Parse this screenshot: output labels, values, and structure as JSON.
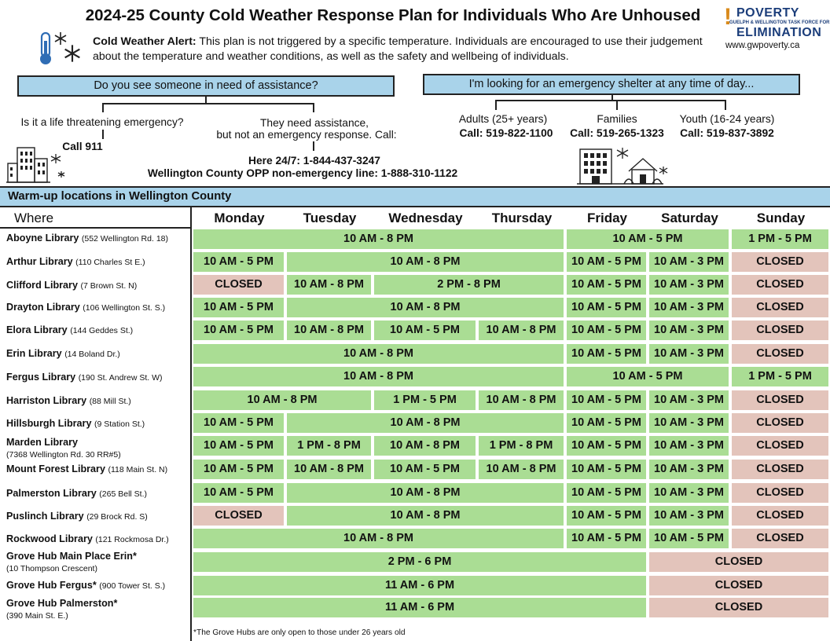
{
  "title": "2024-25 County Cold Weather Response Plan for Individuals Who Are Unhoused",
  "logo": {
    "top": "POVERTY",
    "subtitle": "GUELPH & WELLINGTON TASK FORCE FOR",
    "bottom": "ELIMINATION",
    "website": "www.gwpoverty.ca"
  },
  "alert": {
    "label": "Cold Weather Alert:",
    "text": " This plan is not triggered by a specific temperature. Individuals are encouraged to use their judgement about the temperature and weather conditions, as well as the safety and wellbeing of individuals."
  },
  "assist": {
    "header": "Do you see someone in need of assistance?",
    "left_q": "Is it a life threatening emergency?",
    "left_call": "Call 911",
    "right_q1": "They need assistance,",
    "right_q2": "but not an emergency response. Call:",
    "here247": "Here 24/7: 1-844-437-3247",
    "opp": "Wellington County OPP non-emergency line: 1-888-310-1122"
  },
  "shelter": {
    "header": "I'm looking for an emergency shelter at any time of day...",
    "groups": [
      {
        "label": "Adults (25+ years)",
        "call": "Call: 519-822-1100"
      },
      {
        "label": "Families",
        "call": "Call: 519-265-1323"
      },
      {
        "label": "Youth (16-24 years)",
        "call": "Call: 519-837-3892"
      }
    ]
  },
  "warmup": {
    "header": "Warm-up locations in Wellington County",
    "where": "Where",
    "days": [
      "Monday",
      "Tuesday",
      "Wednesday",
      "Thursday",
      "Friday",
      "Saturday",
      "Sunday"
    ],
    "rows": [
      {
        "name": "Aboyne Library",
        "addr": "(552 Wellington Rd. 18)",
        "cells": [
          {
            "text": "10 AM - 8 PM",
            "span": 4,
            "color": "g"
          },
          {
            "text": "10 AM - 5 PM",
            "span": 2,
            "color": "g"
          },
          {
            "text": "1 PM - 5 PM",
            "span": 1,
            "color": "g"
          }
        ]
      },
      {
        "name": "Arthur Library",
        "addr": "(110 Charles St E.)",
        "cells": [
          {
            "text": "10 AM - 5 PM",
            "span": 1,
            "color": "g"
          },
          {
            "text": "10 AM - 8 PM",
            "span": 3,
            "color": "g"
          },
          {
            "text": "10 AM - 5 PM",
            "span": 1,
            "color": "g"
          },
          {
            "text": "10 AM - 3 PM",
            "span": 1,
            "color": "g"
          },
          {
            "text": "CLOSED",
            "span": 1,
            "color": "r"
          }
        ]
      },
      {
        "name": "Clifford Library",
        "addr": "(7 Brown St. N)",
        "cells": [
          {
            "text": "CLOSED",
            "span": 1,
            "color": "r"
          },
          {
            "text": "10 AM - 8 PM",
            "span": 1,
            "color": "g"
          },
          {
            "text": "2 PM - 8 PM",
            "span": 2,
            "color": "g"
          },
          {
            "text": "10 AM - 5 PM",
            "span": 1,
            "color": "g"
          },
          {
            "text": "10 AM - 3 PM",
            "span": 1,
            "color": "g"
          },
          {
            "text": "CLOSED",
            "span": 1,
            "color": "r"
          }
        ]
      },
      {
        "name": "Drayton Library",
        "addr": "(106 Wellington St. S.)",
        "cells": [
          {
            "text": "10 AM - 5 PM",
            "span": 1,
            "color": "g"
          },
          {
            "text": "10 AM - 8 PM",
            "span": 3,
            "color": "g"
          },
          {
            "text": "10 AM - 5 PM",
            "span": 1,
            "color": "g"
          },
          {
            "text": "10 AM - 3 PM",
            "span": 1,
            "color": "g"
          },
          {
            "text": "CLOSED",
            "span": 1,
            "color": "r"
          }
        ]
      },
      {
        "name": "Elora Library",
        "addr": "(144 Geddes St.)",
        "cells": [
          {
            "text": "10 AM - 5 PM",
            "span": 1,
            "color": "g"
          },
          {
            "text": "10 AM - 8 PM",
            "span": 1,
            "color": "g"
          },
          {
            "text": "10 AM - 5 PM",
            "span": 1,
            "color": "g"
          },
          {
            "text": "10 AM - 8 PM",
            "span": 1,
            "color": "g"
          },
          {
            "text": "10 AM - 5 PM",
            "span": 1,
            "color": "g"
          },
          {
            "text": "10 AM - 3 PM",
            "span": 1,
            "color": "g"
          },
          {
            "text": "CLOSED",
            "span": 1,
            "color": "r"
          }
        ]
      },
      {
        "name": "Erin Library",
        "addr": "(14 Boland Dr.)",
        "cells": [
          {
            "text": "10 AM - 8 PM",
            "span": 4,
            "color": "g"
          },
          {
            "text": "10 AM - 5 PM",
            "span": 1,
            "color": "g"
          },
          {
            "text": "10 AM - 3 PM",
            "span": 1,
            "color": "g"
          },
          {
            "text": "CLOSED",
            "span": 1,
            "color": "r"
          }
        ]
      },
      {
        "name": "Fergus Library",
        "addr": "(190 St. Andrew St. W)",
        "cells": [
          {
            "text": "10 AM - 8 PM",
            "span": 4,
            "color": "g"
          },
          {
            "text": "10 AM - 5 PM",
            "span": 2,
            "color": "g"
          },
          {
            "text": "1 PM - 5 PM",
            "span": 1,
            "color": "g"
          }
        ]
      },
      {
        "name": "Harriston Library",
        "addr": "(88 Mill St.)",
        "cells": [
          {
            "text": "10 AM - 8 PM",
            "span": 2,
            "color": "g"
          },
          {
            "text": "1 PM - 5 PM",
            "span": 1,
            "color": "g"
          },
          {
            "text": "10 AM - 8 PM",
            "span": 1,
            "color": "g"
          },
          {
            "text": "10 AM - 5 PM",
            "span": 1,
            "color": "g"
          },
          {
            "text": "10 AM - 3 PM",
            "span": 1,
            "color": "g"
          },
          {
            "text": "CLOSED",
            "span": 1,
            "color": "r"
          }
        ]
      },
      {
        "name": "Hillsburgh Library",
        "addr": "(9 Station St.)",
        "cells": [
          {
            "text": "10 AM - 5 PM",
            "span": 1,
            "color": "g"
          },
          {
            "text": "10 AM - 8 PM",
            "span": 3,
            "color": "g"
          },
          {
            "text": "10 AM - 5 PM",
            "span": 1,
            "color": "g"
          },
          {
            "text": "10 AM - 3 PM",
            "span": 1,
            "color": "g"
          },
          {
            "text": "CLOSED",
            "span": 1,
            "color": "r"
          }
        ]
      },
      {
        "name": "Marden Library",
        "addr": "(7368 Wellington Rd. 30 RR#5)",
        "cells": [
          {
            "text": "10 AM - 5 PM",
            "span": 1,
            "color": "g"
          },
          {
            "text": "1 PM - 8 PM",
            "span": 1,
            "color": "g"
          },
          {
            "text": "10 AM - 8 PM",
            "span": 1,
            "color": "g"
          },
          {
            "text": "1 PM - 8 PM",
            "span": 1,
            "color": "g"
          },
          {
            "text": "10 AM - 5 PM",
            "span": 1,
            "color": "g"
          },
          {
            "text": "10 AM - 3 PM",
            "span": 1,
            "color": "g"
          },
          {
            "text": "CLOSED",
            "span": 1,
            "color": "r"
          }
        ]
      },
      {
        "name": "Mount Forest Library",
        "addr": "(118 Main St. N)",
        "cells": [
          {
            "text": "10 AM - 5 PM",
            "span": 1,
            "color": "g"
          },
          {
            "text": "10 AM - 8 PM",
            "span": 1,
            "color": "g"
          },
          {
            "text": "10 AM - 5 PM",
            "span": 1,
            "color": "g"
          },
          {
            "text": "10 AM - 8 PM",
            "span": 1,
            "color": "g"
          },
          {
            "text": "10 AM - 5 PM",
            "span": 1,
            "color": "g"
          },
          {
            "text": "10 AM - 3 PM",
            "span": 1,
            "color": "g"
          },
          {
            "text": "CLOSED",
            "span": 1,
            "color": "r"
          }
        ]
      },
      {
        "name": "Palmerston Library",
        "addr": "(265 Bell St.)",
        "cells": [
          {
            "text": "10 AM - 5 PM",
            "span": 1,
            "color": "g"
          },
          {
            "text": "10 AM - 8 PM",
            "span": 3,
            "color": "g"
          },
          {
            "text": "10 AM - 5 PM",
            "span": 1,
            "color": "g"
          },
          {
            "text": "10 AM - 3 PM",
            "span": 1,
            "color": "g"
          },
          {
            "text": "CLOSED",
            "span": 1,
            "color": "r"
          }
        ]
      },
      {
        "name": "Puslinch Library",
        "addr": "(29 Brock Rd. S)",
        "cells": [
          {
            "text": "CLOSED",
            "span": 1,
            "color": "r"
          },
          {
            "text": "10 AM - 8 PM",
            "span": 3,
            "color": "g"
          },
          {
            "text": "10 AM - 5 PM",
            "span": 1,
            "color": "g"
          },
          {
            "text": "10 AM - 3 PM",
            "span": 1,
            "color": "g"
          },
          {
            "text": "CLOSED",
            "span": 1,
            "color": "r"
          }
        ]
      },
      {
        "name": "Rockwood Library",
        "addr": "(121 Rockmosa Dr.)",
        "cells": [
          {
            "text": "10 AM - 8 PM",
            "span": 4,
            "color": "g"
          },
          {
            "text": "10 AM - 5 PM",
            "span": 1,
            "color": "g"
          },
          {
            "text": "10 AM - 5 PM",
            "span": 1,
            "color": "g"
          },
          {
            "text": "CLOSED",
            "span": 1,
            "color": "r"
          }
        ]
      },
      {
        "name": "Grove Hub Main Place Erin*",
        "addr": "(10 Thompson Crescent)",
        "cells": [
          {
            "text": "2 PM - 6 PM",
            "span": 5,
            "color": "g"
          },
          {
            "text": "CLOSED",
            "span": 2,
            "color": "r"
          }
        ]
      },
      {
        "name": "Grove Hub Fergus*",
        "addr": "(900 Tower St. S.)",
        "cells": [
          {
            "text": "11  AM - 6 PM",
            "span": 5,
            "color": "g"
          },
          {
            "text": "CLOSED",
            "span": 2,
            "color": "r"
          }
        ]
      },
      {
        "name": "Grove Hub Palmerston*",
        "addr": "(390 Main St. E.)",
        "cells": [
          {
            "text": "11 AM - 6 PM",
            "span": 5,
            "color": "g"
          },
          {
            "text": "CLOSED",
            "span": 2,
            "color": "r"
          }
        ]
      }
    ],
    "footnote": "*The Grove Hubs are only open to those under 26 years old"
  },
  "colors": {
    "header_blue": "#a9d3ea",
    "open_green": "#aadd94",
    "closed_pink": "#e3c4bb",
    "thermo_blue": "#2f6db5"
  },
  "icons": [
    "thermometer-icon",
    "snowflake-icon",
    "building-icon",
    "houses-icon"
  ]
}
